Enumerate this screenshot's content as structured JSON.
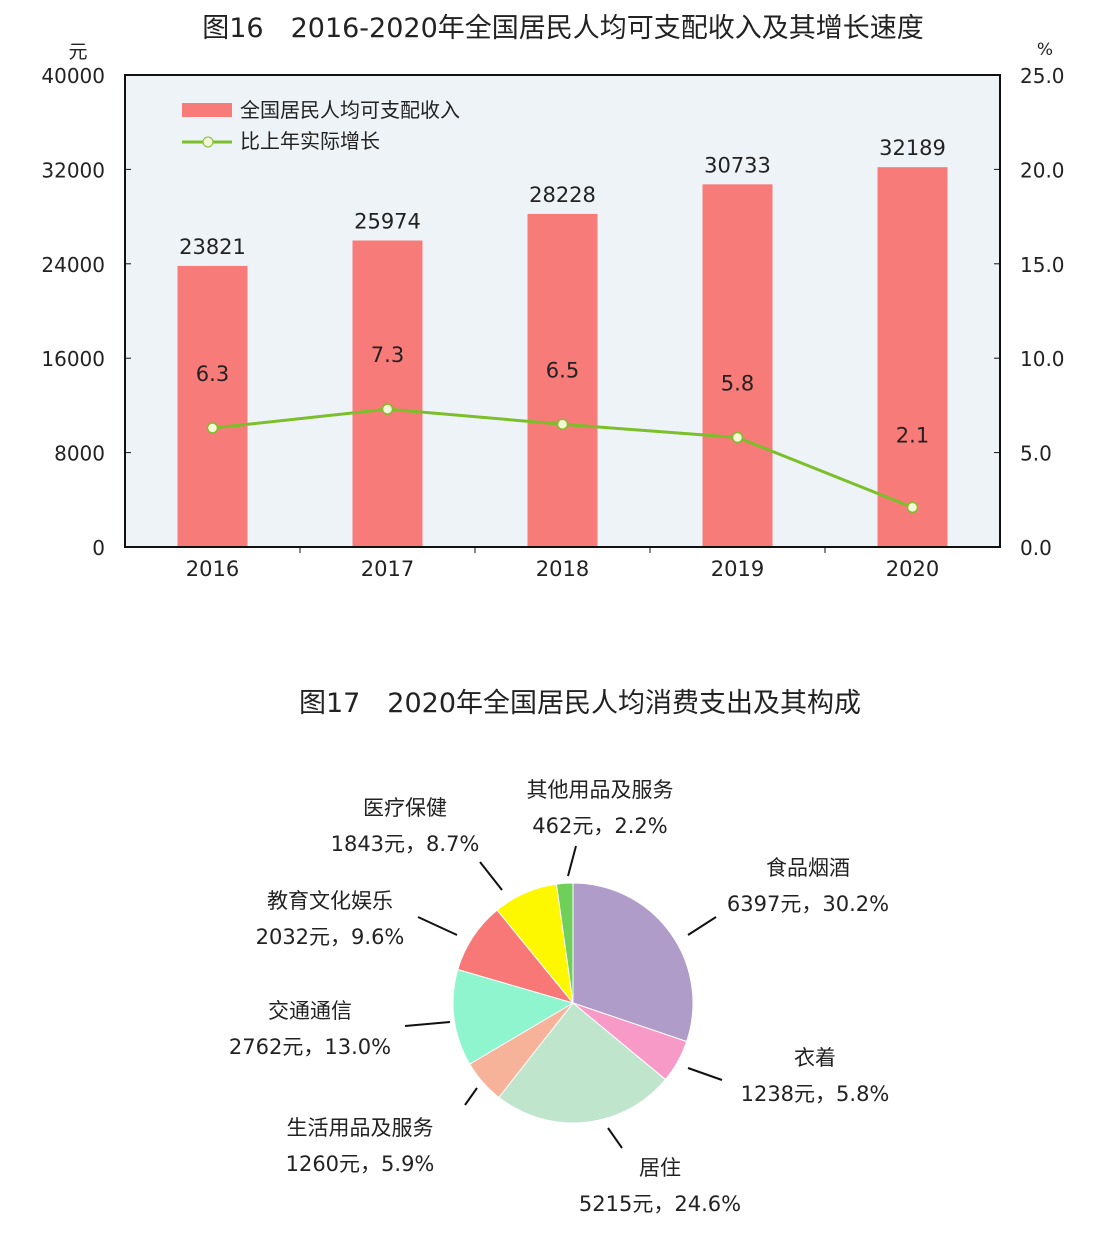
{
  "chart_data": [
    {
      "type": "bar",
      "title": "图16　2016-2020年全国居民人均可支配收入及其增长速度",
      "ylabel": "元",
      "y2label": "%",
      "ylim": [
        0,
        40000
      ],
      "y2lim": [
        0,
        25
      ],
      "yticks": [
        "0",
        "8000",
        "16000",
        "24000",
        "32000",
        "40000"
      ],
      "y2ticks": [
        "0.0",
        "5.0",
        "10.0",
        "15.0",
        "20.0",
        "25.0"
      ],
      "categories": [
        "2016",
        "2017",
        "2018",
        "2019",
        "2020"
      ],
      "legend_position": "top-left",
      "series": [
        {
          "name": "全国居民人均可支配收入",
          "type": "bar",
          "axis": "left",
          "color": "#f77b78",
          "values": [
            23821,
            25974,
            28228,
            30733,
            32189
          ],
          "labels": [
            "23821",
            "25974",
            "28228",
            "30733",
            "32189"
          ]
        },
        {
          "name": "比上年实际增长",
          "type": "line",
          "axis": "right",
          "color": "#7cbf2a",
          "values": [
            6.3,
            7.3,
            6.5,
            5.8,
            2.1
          ],
          "labels": [
            "6.3",
            "7.3",
            "6.5",
            "5.8",
            "2.1"
          ]
        }
      ],
      "background": "#eef3f8"
    },
    {
      "type": "pie",
      "title": "图17　2020年全国居民人均消费支出及其构成",
      "slices": [
        {
          "name": "食品烟酒",
          "value": 6397,
          "percent": 30.2,
          "label": "6397元，30.2%",
          "color": "#b09cc8"
        },
        {
          "name": "衣着",
          "value": 1238,
          "percent": 5.8,
          "label": "1238元，5.8%",
          "color": "#f79ac8"
        },
        {
          "name": "居住",
          "value": 5215,
          "percent": 24.6,
          "label": "5215元，24.6%",
          "color": "#bfe5cc"
        },
        {
          "name": "生活用品及服务",
          "value": 1260,
          "percent": 5.9,
          "label": "1260元，5.9%",
          "color": "#f7b29a"
        },
        {
          "name": "交通通信",
          "value": 2762,
          "percent": 13.0,
          "label": "2762元，13.0%",
          "color": "#8ff5cf"
        },
        {
          "name": "教育文化娱乐",
          "value": 2032,
          "percent": 9.6,
          "label": "2032元，9.6%",
          "color": "#f87878"
        },
        {
          "name": "医疗保健",
          "value": 1843,
          "percent": 8.7,
          "label": "1843元，8.7%",
          "color": "#fdf700"
        },
        {
          "name": "其他用品及服务",
          "value": 462,
          "percent": 2.2,
          "label": "462元，2.2%",
          "color": "#6ecf5a"
        }
      ]
    }
  ]
}
